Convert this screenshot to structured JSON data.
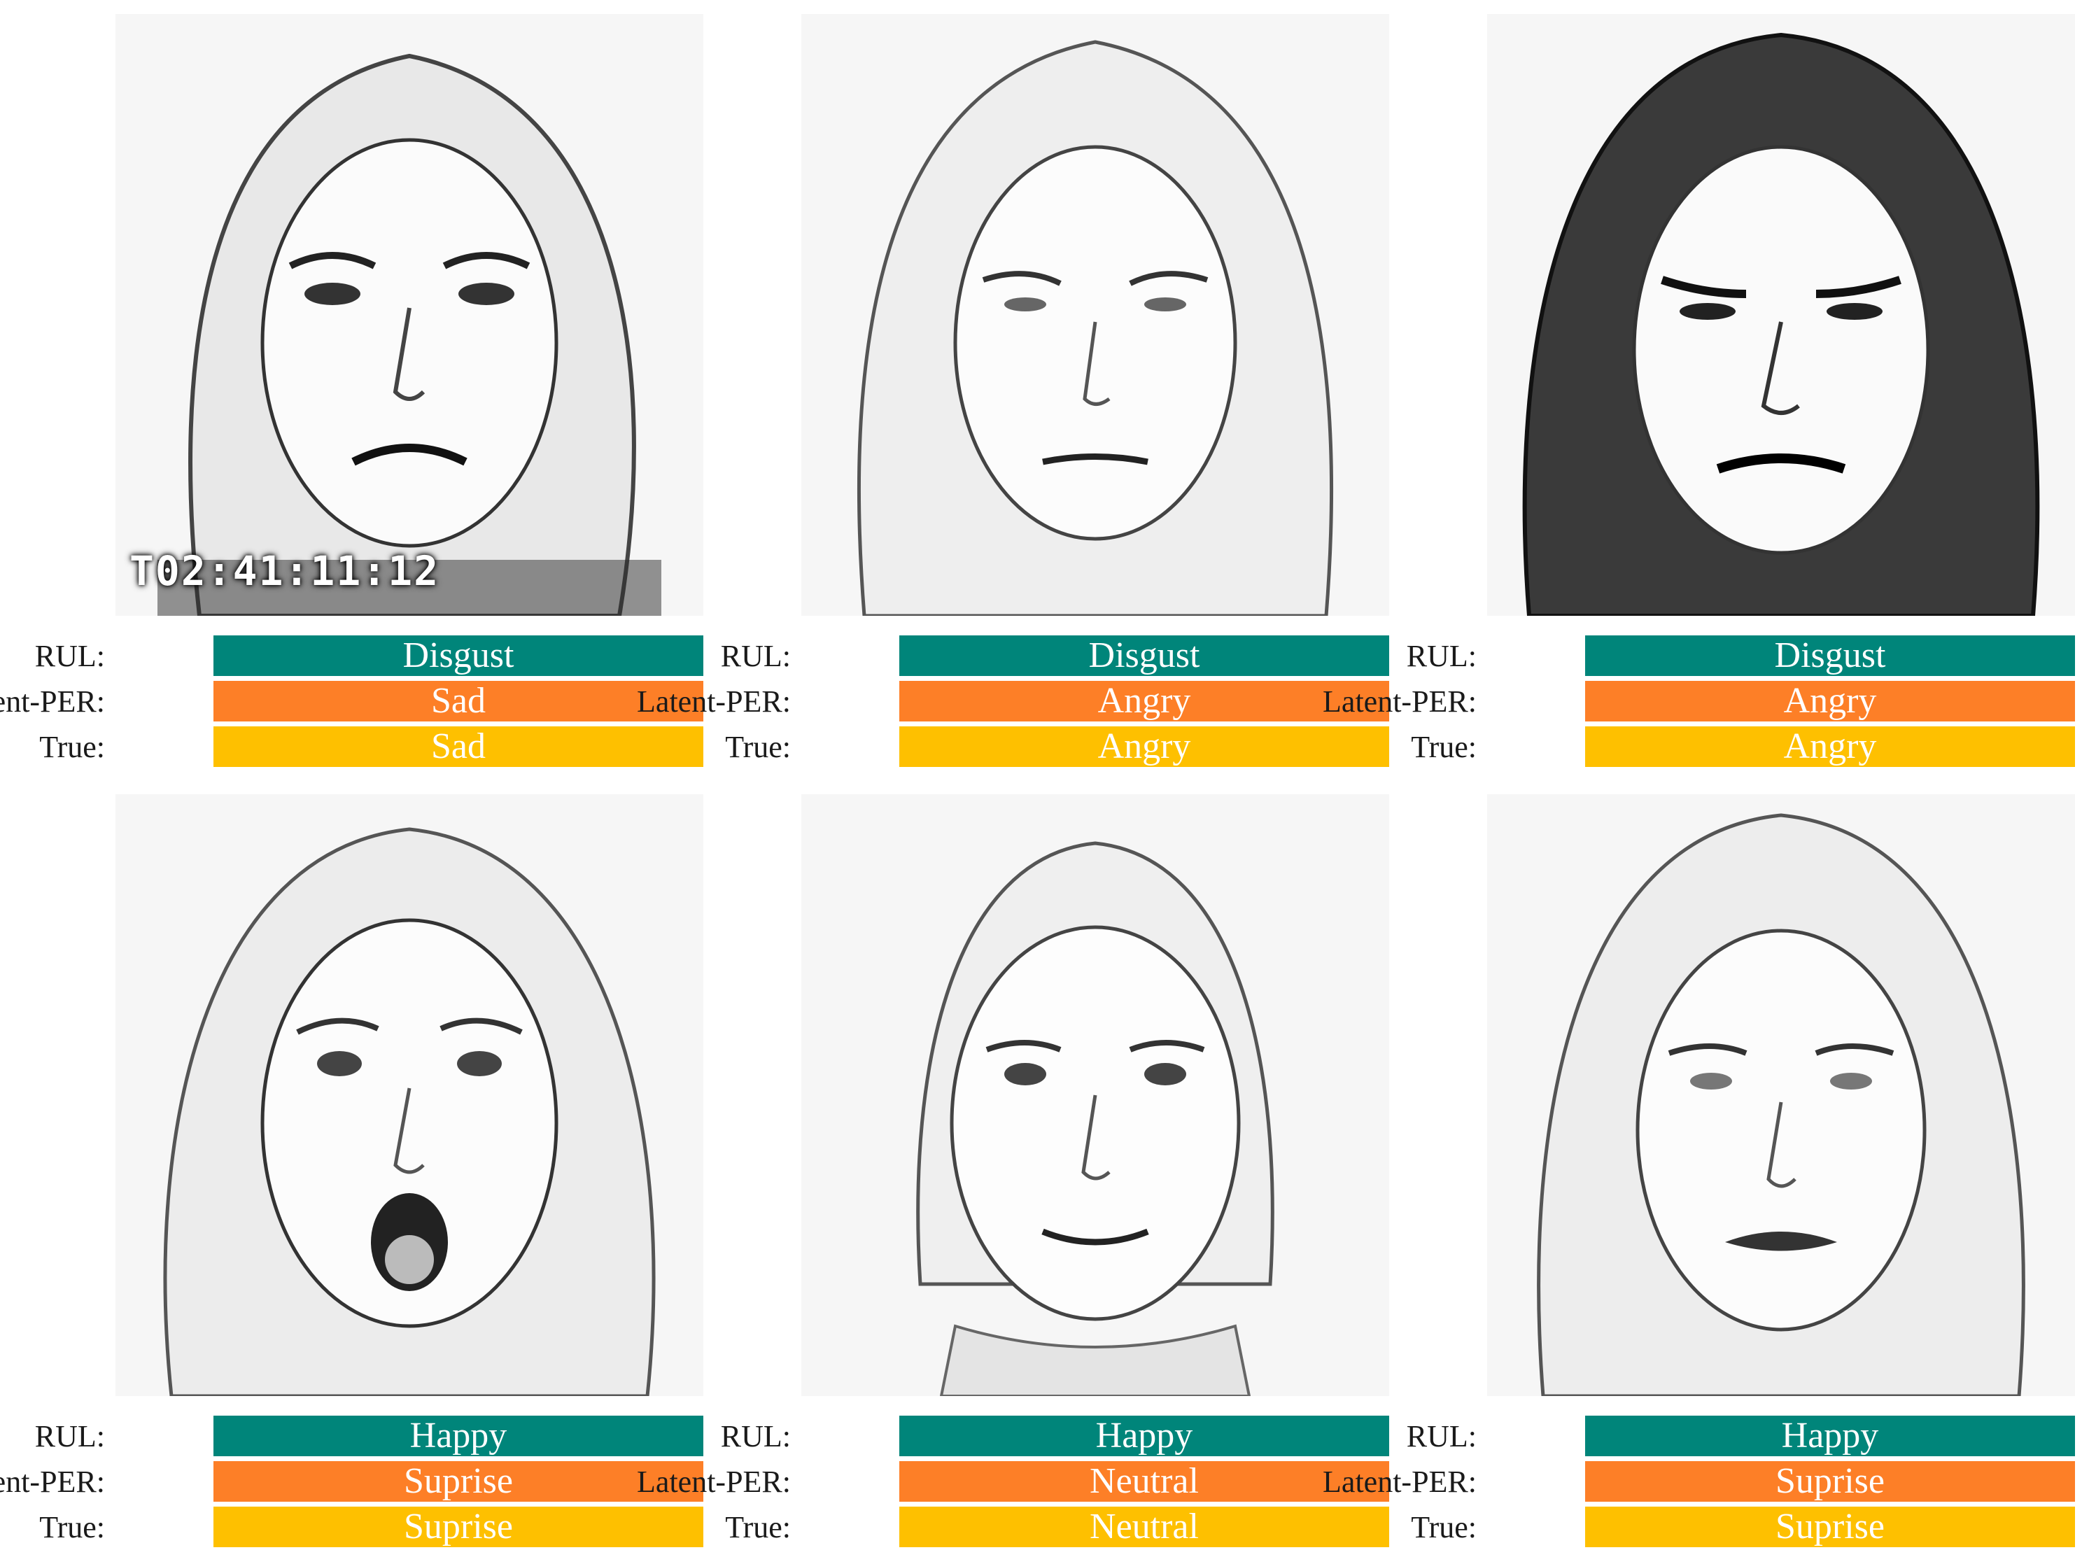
{
  "labels": {
    "rul": "RUL:",
    "latent": "Latent-PER:",
    "true": "True:"
  },
  "colors": {
    "rul": "#00857a",
    "latent": "#fd7f27",
    "true": "#fec000"
  },
  "panels": [
    {
      "rul": "Disgust",
      "latent": "Sad",
      "true": "Sad",
      "timestamp": "T02:41:11:12"
    },
    {
      "rul": "Disgust",
      "latent": "Angry",
      "true": "Angry"
    },
    {
      "rul": "Disgust",
      "latent": "Angry",
      "true": "Angry"
    },
    {
      "rul": "Happy",
      "latent": "Suprise",
      "true": "Suprise"
    },
    {
      "rul": "Happy",
      "latent": "Neutral",
      "true": "Neutral"
    },
    {
      "rul": "Happy",
      "latent": "Suprise",
      "true": "Suprise"
    }
  ]
}
